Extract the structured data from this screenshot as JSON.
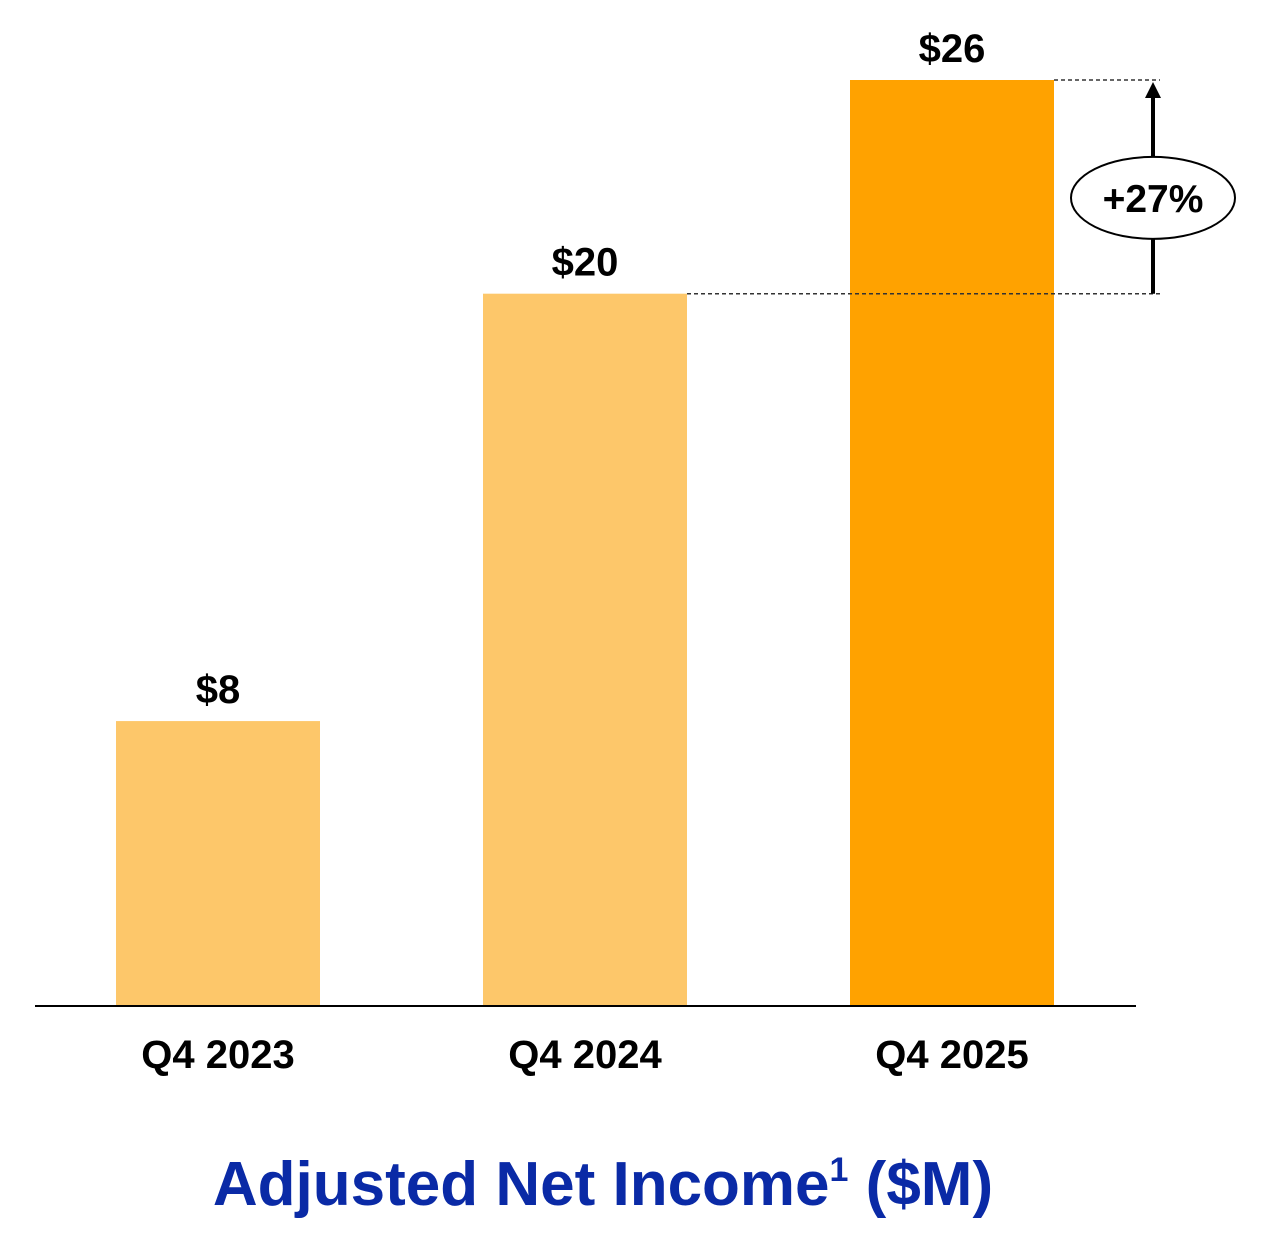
{
  "chart_data": {
    "type": "bar",
    "categories": [
      "Q4 2023",
      "Q4 2024",
      "Q4 2025"
    ],
    "values": [
      8,
      20,
      26
    ],
    "value_labels": [
      "$8",
      "$20",
      "$26"
    ],
    "bar_colors": [
      "#fdc76a",
      "#fdc76a",
      "#ffa200"
    ],
    "title": "Adjusted Net Income",
    "title_superscript": "1",
    "title_suffix": " ($M)",
    "title_color": "#0a2aa6",
    "xlabel": "",
    "ylabel": "",
    "ylim": [
      0,
      26
    ],
    "grid": false,
    "legend": "none",
    "annotation": {
      "text": "+27%",
      "from_category": "Q4 2024",
      "to_category": "Q4 2025"
    }
  }
}
